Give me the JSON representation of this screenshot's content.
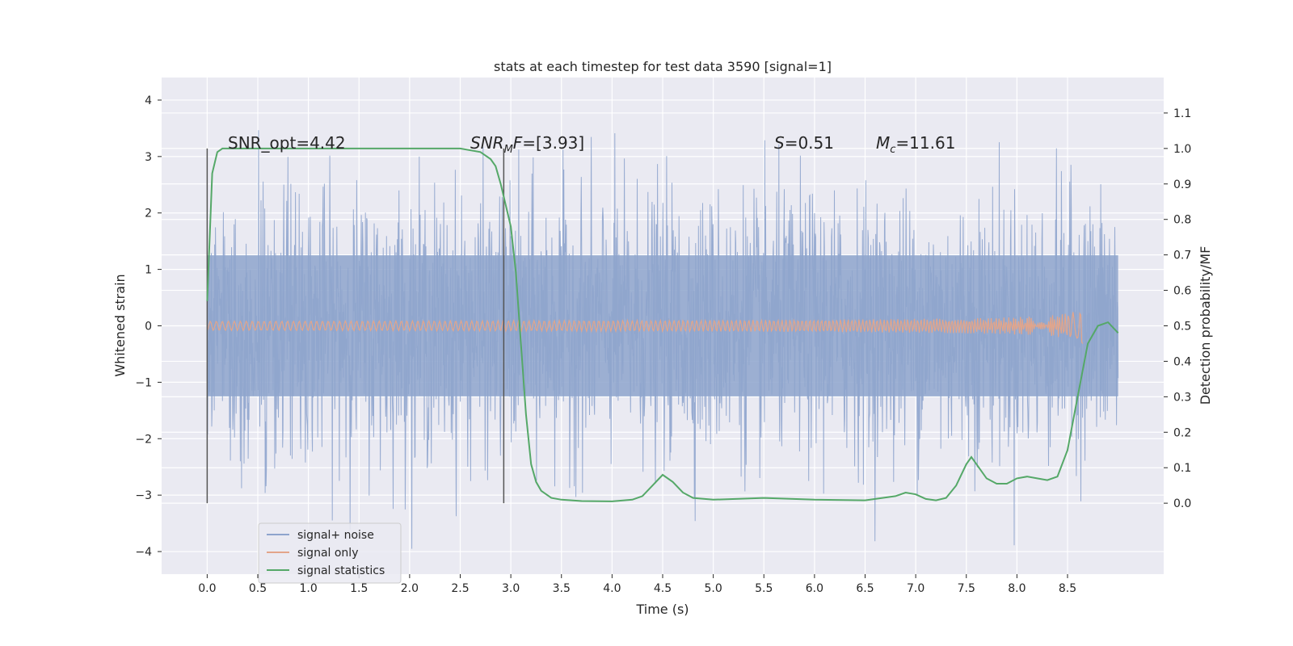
{
  "chart_data": {
    "type": "line",
    "title": "stats at each timestep for test data 3590 [signal=1]",
    "xlabel": "Time (s)",
    "ylabel_left": "Whitened strain",
    "ylabel_right": "Detection probability/MF",
    "xlim": [
      -0.45,
      9.45
    ],
    "ylim_left": [
      -4.4,
      4.4
    ],
    "ylim_right": [
      -0.2,
      1.2
    ],
    "x_ticks": [
      "0.0",
      "0.5",
      "1.0",
      "1.5",
      "2.0",
      "2.5",
      "3.0",
      "3.5",
      "4.0",
      "4.5",
      "5.0",
      "5.5",
      "6.0",
      "6.5",
      "7.0",
      "7.5",
      "8.0",
      "8.5"
    ],
    "y_left_ticks": [
      "−4",
      "−3",
      "−2",
      "−1",
      "0",
      "1",
      "2",
      "3",
      "4"
    ],
    "y_right_ticks": [
      "0.0",
      "0.1",
      "0.2",
      "0.3",
      "0.4",
      "0.5",
      "0.6",
      "0.7",
      "0.8",
      "0.9",
      "1.0",
      "1.1"
    ],
    "grid": true,
    "legend_position": "lower-left",
    "series": [
      {
        "name": "signal+ noise",
        "color": "#8ea4cd",
        "description_range": [
          -4.0,
          4.0
        ]
      },
      {
        "name": "signal only",
        "color": "#e3a58a",
        "peak_amplitude": 0.8
      },
      {
        "name": "signal statistics",
        "color": "#55a868",
        "x": [
          0.0,
          0.05,
          0.1,
          0.15,
          0.2,
          0.3,
          0.5,
          1.0,
          1.5,
          2.0,
          2.5,
          2.7,
          2.8,
          2.85,
          2.9,
          3.0,
          3.05,
          3.1,
          3.15,
          3.2,
          3.25,
          3.3,
          3.4,
          3.5,
          3.7,
          4.0,
          4.2,
          4.3,
          4.4,
          4.5,
          4.6,
          4.7,
          4.8,
          5.0,
          5.5,
          6.0,
          6.5,
          6.8,
          6.9,
          7.0,
          7.1,
          7.2,
          7.3,
          7.4,
          7.5,
          7.55,
          7.6,
          7.7,
          7.8,
          7.9,
          8.0,
          8.1,
          8.2,
          8.3,
          8.4,
          8.5,
          8.6,
          8.7,
          8.8,
          8.9,
          9.0
        ],
        "y": [
          0.57,
          0.93,
          0.99,
          1.0,
          1.0,
          1.0,
          1.0,
          1.0,
          1.0,
          1.0,
          1.0,
          0.99,
          0.97,
          0.95,
          0.9,
          0.78,
          0.65,
          0.45,
          0.25,
          0.11,
          0.06,
          0.035,
          0.015,
          0.01,
          0.006,
          0.005,
          0.01,
          0.02,
          0.05,
          0.08,
          0.06,
          0.03,
          0.015,
          0.01,
          0.015,
          0.01,
          0.008,
          0.02,
          0.03,
          0.025,
          0.012,
          0.008,
          0.015,
          0.05,
          0.11,
          0.13,
          0.11,
          0.07,
          0.055,
          0.055,
          0.07,
          0.075,
          0.07,
          0.065,
          0.075,
          0.15,
          0.3,
          0.45,
          0.5,
          0.51,
          0.48
        ]
      }
    ],
    "vlines": [
      0.0,
      2.93
    ],
    "annotations": {
      "snr_opt": "SNR_opt=4.42",
      "snr_mf_italic": "SNR",
      "snr_mf_sub": "M",
      "snr_mf_rest_italic": "F",
      "snr_mf_value": "=[3.93]",
      "s_italic": "S",
      "s_value": "=0.51",
      "mc_italic": "M",
      "mc_sub": "c",
      "mc_value": "=11.61"
    }
  }
}
